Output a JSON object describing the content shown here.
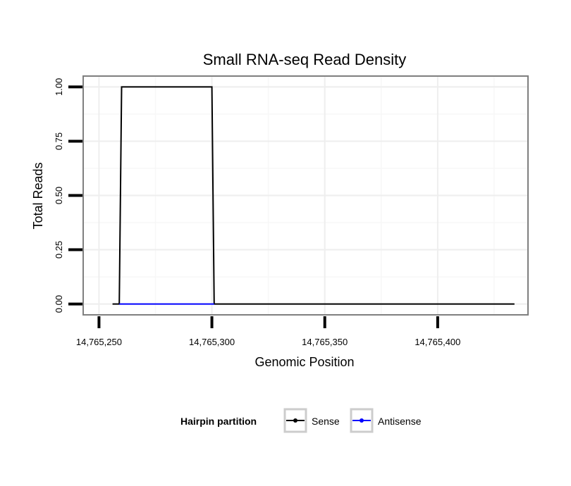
{
  "chart_data": {
    "type": "line",
    "title": "Small RNA-seq Read Density",
    "xlabel": "Genomic Position",
    "ylabel": "Total Reads",
    "xlim": [
      14765243,
      14765440
    ],
    "ylim": [
      -0.05,
      1.05
    ],
    "x_ticks": [
      14765250,
      14765300,
      14765350,
      14765400
    ],
    "x_tick_labels": [
      "14,765,250",
      "14,765,300",
      "14,765,350",
      "14,765,400"
    ],
    "y_ticks": [
      0,
      0.25,
      0.5,
      0.75,
      1.0
    ],
    "y_tick_labels": [
      "0.00",
      "0.25",
      "0.50",
      "0.75",
      "1.00"
    ],
    "x_minor_ticks": [
      14765275,
      14765325,
      14765375,
      14765425
    ],
    "y_minor_ticks": [
      0.125,
      0.375,
      0.625,
      0.875
    ],
    "grid": true,
    "legend": {
      "title": "Hairpin partition",
      "position": "bottom"
    },
    "series": [
      {
        "name": "Sense",
        "color": "#000000",
        "x": [
          14765256,
          14765259,
          14765260,
          14765300,
          14765301,
          14765434
        ],
        "y": [
          0,
          0,
          1,
          1,
          0,
          0
        ]
      },
      {
        "name": "Antisense",
        "color": "#0000ff",
        "x": [
          14765259,
          14765301
        ],
        "y": [
          0,
          0
        ]
      }
    ]
  }
}
